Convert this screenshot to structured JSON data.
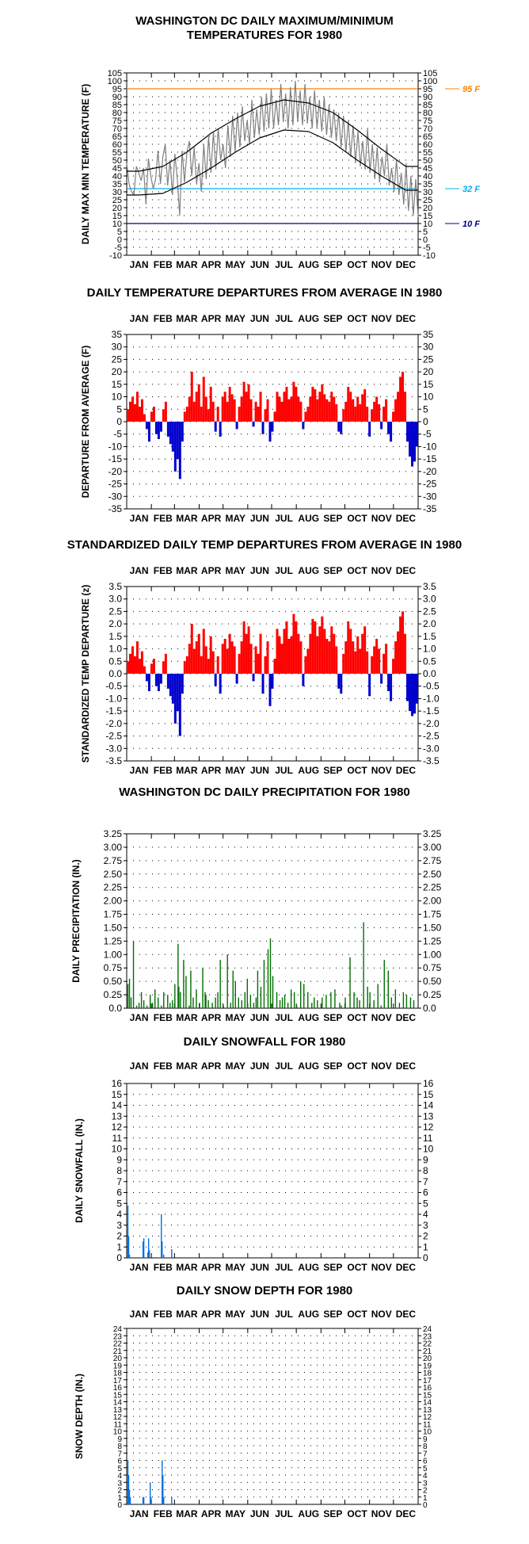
{
  "months": [
    "JAN",
    "FEB",
    "MAR",
    "APR",
    "MAY",
    "JUN",
    "JUL",
    "AUG",
    "SEP",
    "OCT",
    "NOV",
    "DEC"
  ],
  "colors": {
    "max_temp": "#808080",
    "normal_lines": "#000000",
    "ref_95": "#ff8000",
    "ref_32": "#00b0f0",
    "ref_10": "#000080",
    "departure_pos": "#ff0000",
    "departure_neg": "#0000cc",
    "precip": "#007000",
    "snow": "#0070e0"
  },
  "chart_data": [
    {
      "id": "temps",
      "type": "line",
      "title": "WASHINGTON DC DAILY MAXIMUM/MINIMUM\nTEMPERATURES FOR 1980",
      "ylabel": "DAILY MAX MIN TEMPERATURE (F)",
      "ylim": [
        -10,
        105
      ],
      "yticks": [
        "105",
        "100",
        "95",
        "90",
        "85",
        "80",
        "75",
        "70",
        "65",
        "60",
        "55",
        "50",
        "45",
        "40",
        "35",
        "30",
        "25",
        "20",
        "15",
        "10",
        "5",
        "0",
        "-5",
        "-10"
      ],
      "ref_lines": [
        {
          "value": 95,
          "label": "95 F"
        },
        {
          "value": 32,
          "label": "32 F"
        },
        {
          "value": 10,
          "label": "10 F"
        }
      ],
      "normal_high_monthly": [
        43,
        46,
        55,
        67,
        76,
        84,
        88,
        86,
        80,
        69,
        57,
        46
      ],
      "normal_low_monthly": [
        28,
        29,
        36,
        45,
        55,
        64,
        69,
        68,
        61,
        50,
        40,
        31
      ],
      "series": [
        {
          "values": [
            48,
            35,
            30,
            28,
            46,
            42,
            37,
            45,
            22,
            51,
            40,
            32,
            38,
            56,
            35,
            52,
            60,
            34,
            50,
            28,
            54,
            38,
            15,
            56,
            36,
            55,
            62,
            40,
            58,
            35,
            48,
            30,
            60,
            38,
            65,
            42,
            68,
            44,
            70,
            50,
            60,
            45,
            72,
            52,
            78,
            55,
            80,
            58,
            84,
            62,
            75,
            60,
            88,
            64,
            82,
            66,
            90,
            68,
            92,
            70,
            95,
            70,
            88,
            72,
            98,
            74,
            92,
            70,
            96,
            72,
            100,
            74,
            94,
            72,
            98,
            73,
            90,
            70,
            94,
            70,
            88,
            68,
            90,
            66,
            85,
            64,
            82,
            62,
            80,
            58,
            78,
            55,
            75,
            52,
            72,
            48,
            68,
            46,
            62,
            44,
            70,
            42,
            60,
            38,
            58,
            36,
            52,
            40,
            60,
            34,
            45,
            30,
            50,
            28,
            42,
            22,
            48,
            18,
            40,
            15,
            38,
            14
          ]
        }
      ]
    },
    {
      "id": "departures",
      "type": "bar",
      "title": "DAILY TEMPERATURE DEPARTURES FROM AVERAGE IN 1980",
      "ylabel": "DEPARTURE FROM AVERAGE (F)",
      "ylim": [
        -35,
        35
      ],
      "yticks": [
        "35",
        "30",
        "25",
        "20",
        "15",
        "10",
        "5",
        "0",
        "-5",
        "-10",
        "-15",
        "-20",
        "-25",
        "-30",
        "-35"
      ],
      "series": [
        {
          "values": [
            5,
            8,
            10,
            7,
            12,
            6,
            9,
            3,
            -3,
            -8,
            4,
            6,
            -5,
            -7,
            -4,
            5,
            8,
            -6,
            -9,
            -12,
            -20,
            -15,
            -23,
            -8,
            4,
            6,
            10,
            20,
            8,
            12,
            15,
            6,
            18,
            10,
            5,
            14,
            8,
            -4,
            6,
            -6,
            10,
            12,
            8,
            14,
            11,
            9,
            -3,
            6,
            10,
            16,
            12,
            15,
            9,
            -2,
            8,
            6,
            12,
            -5,
            5,
            9,
            -8,
            -4,
            4,
            12,
            10,
            8,
            12,
            14,
            9,
            10,
            16,
            14,
            10,
            8,
            -3,
            4,
            6,
            10,
            14,
            13,
            9,
            12,
            15,
            11,
            9,
            8,
            12,
            10,
            7,
            -4,
            -5,
            5,
            8,
            14,
            12,
            9,
            6,
            10,
            7,
            11,
            13,
            6,
            -6,
            5,
            8,
            10,
            7,
            -3,
            6,
            9,
            -5,
            -8,
            4,
            9,
            12,
            18,
            20,
            12,
            -8,
            -14,
            -18,
            -16,
            -10
          ]
        }
      ]
    },
    {
      "id": "standardized",
      "type": "bar",
      "title": "STANDARDIZED DAILY TEMP DEPARTURES FROM AVERAGE IN 1980",
      "ylabel": "STANDARDIZED TEMP DEPARTURE (z)",
      "ylim": [
        -3.5,
        3.5
      ],
      "yticks": [
        "3.5",
        "3.0",
        "2.5",
        "2.0",
        "1.5",
        "1.0",
        "0.5",
        "0.0",
        "-0.5",
        "-1.0",
        "-1.5",
        "-2.0",
        "-2.5",
        "-3.0",
        "-3.5"
      ],
      "series": [
        {
          "values": [
            0.5,
            0.8,
            1.1,
            0.7,
            1.3,
            0.6,
            0.9,
            0.3,
            -0.3,
            -0.7,
            0.4,
            0.6,
            -0.5,
            -0.7,
            -0.4,
            0.5,
            0.8,
            -0.6,
            -0.9,
            -1.2,
            -2.0,
            -1.5,
            -2.5,
            -0.8,
            0.5,
            0.7,
            1.2,
            2.0,
            1.0,
            1.3,
            1.6,
            0.7,
            1.8,
            1.1,
            0.6,
            1.5,
            0.9,
            -0.5,
            0.7,
            -0.8,
            1.2,
            1.4,
            1.0,
            1.6,
            1.3,
            1.1,
            -0.4,
            0.8,
            1.3,
            2.1,
            1.6,
            1.9,
            1.2,
            -0.3,
            1.1,
            0.8,
            1.6,
            -0.8,
            0.7,
            1.3,
            -1.3,
            -0.6,
            0.6,
            1.8,
            1.5,
            1.2,
            1.8,
            2.1,
            1.4,
            1.5,
            2.4,
            2.1,
            1.6,
            1.3,
            -0.5,
            0.7,
            1.0,
            1.6,
            2.2,
            2.1,
            1.5,
            1.9,
            2.3,
            1.8,
            1.4,
            1.3,
            1.9,
            1.6,
            1.1,
            -0.6,
            -0.8,
            0.8,
            1.3,
            2.1,
            1.8,
            1.3,
            0.9,
            1.5,
            1.0,
            1.6,
            1.9,
            0.9,
            -0.9,
            0.7,
            1.1,
            1.4,
            1.0,
            -0.4,
            0.8,
            1.2,
            -0.7,
            -1.1,
            0.6,
            1.3,
            1.7,
            2.3,
            2.5,
            1.6,
            -1.1,
            -1.5,
            -1.7,
            -1.6,
            -1.2
          ]
        }
      ]
    },
    {
      "id": "precip",
      "type": "bar",
      "title": "WASHINGTON DC DAILY PRECIPITATION FOR 1980",
      "ylabel": "DAILY PRECIPITATION (IN.)",
      "ylim": [
        0,
        3.25
      ],
      "yticks": [
        "3.25",
        "3.00",
        "2.75",
        "2.50",
        "2.25",
        "2.00",
        "1.75",
        "1.50",
        "1.25",
        "1.00",
        "0.75",
        "0.50",
        "0.25",
        "0.0"
      ],
      "series": [
        {
          "days": [
            2,
            4,
            6,
            9,
            13,
            16,
            19,
            22,
            26,
            30,
            33,
            36,
            40,
            44,
            47,
            52,
            55,
            58,
            61,
            65,
            66,
            68,
            72,
            75,
            79,
            81,
            84,
            88,
            92,
            96,
            99,
            100,
            103,
            108,
            112,
            115,
            118,
            122,
            127,
            131,
            134,
            137,
            141,
            145,
            149,
            152,
            156,
            160,
            163,
            165,
            169,
            173,
            178,
            181,
            184,
            189,
            193,
            196,
            199,
            203,
            207,
            211,
            214,
            219,
            223,
            228,
            233,
            236,
            240,
            246,
            251,
            257,
            262,
            268,
            270,
            275,
            281,
            286,
            290,
            293,
            298,
            303,
            306,
            311,
            316,
            320,
            324,
            329,
            333,
            338,
            343,
            348,
            352,
            357,
            361
          ],
          "values": [
            0.45,
            0.55,
            0.2,
            1.25,
            0.05,
            0.1,
            0.3,
            0.15,
            0.05,
            0.25,
            0.1,
            0.35,
            0.2,
            0.05,
            0.3,
            0.25,
            0.1,
            0.15,
            0.45,
            1.2,
            0.4,
            0.3,
            0.9,
            0.6,
            0.05,
            0.7,
            0.2,
            0.35,
            0.1,
            0.75,
            0.3,
            0.25,
            0.15,
            0.1,
            0.2,
            0.3,
            0.9,
            0.05,
            1.0,
            0.1,
            0.7,
            0.5,
            0.2,
            0.15,
            0.3,
            0.55,
            0.25,
            0.1,
            0.2,
            0.7,
            0.4,
            0.9,
            1.1,
            1.3,
            0.6,
            0.3,
            0.15,
            0.2,
            0.25,
            0.1,
            0.35,
            0.3,
            0.05,
            0.5,
            0.45,
            0.3,
            0.1,
            0.2,
            0.15,
            0.2,
            0.25,
            0.3,
            0.35,
            0.1,
            0.05,
            0.2,
            0.95,
            0.3,
            0.2,
            0.15,
            1.6,
            0.4,
            0.3,
            0.15,
            0.45,
            0.05,
            0.9,
            0.7,
            0.2,
            0.35,
            0.1,
            0.3,
            0.25,
            0.2,
            0.15
          ]
        }
      ]
    },
    {
      "id": "snowfall",
      "type": "bar",
      "title": "DAILY SNOWFALL FOR 1980",
      "ylabel": "DAILY SNOWFALL (IN.)",
      "ylim": [
        0,
        16
      ],
      "yticks": [
        "16",
        "15",
        "14",
        "13",
        "12",
        "11",
        "10",
        "9",
        "8",
        "7",
        "6",
        "5",
        "4",
        "3",
        "2",
        "1",
        "0"
      ],
      "series": [
        {
          "days": [
            2,
            3,
            4,
            21,
            22,
            27,
            28,
            29,
            44,
            45,
            47,
            57
          ],
          "values": [
            4.8,
            2.0,
            0.3,
            1.5,
            1.8,
            0.5,
            1.8,
            0.7,
            4.0,
            1.5,
            0.3,
            0.8
          ]
        }
      ]
    },
    {
      "id": "snowdepth",
      "type": "bar",
      "title": "DAILY SNOW DEPTH FOR 1980",
      "ylabel": "SNOW DEPTH (IN.)",
      "ylim": [
        0,
        24
      ],
      "yticks": [
        "24",
        "23",
        "22",
        "21",
        "20",
        "19",
        "18",
        "17",
        "16",
        "15",
        "14",
        "13",
        "12",
        "11",
        "10",
        "9",
        "8",
        "7",
        "6",
        "5",
        "4",
        "3",
        "2",
        "1",
        "0"
      ],
      "series": [
        {
          "days": [
            2,
            3,
            4,
            5,
            21,
            22,
            30,
            31,
            45,
            46,
            47,
            57
          ],
          "values": [
            6,
            4,
            2,
            1,
            1,
            1,
            3,
            1,
            6,
            4,
            1,
            1
          ]
        }
      ]
    }
  ]
}
